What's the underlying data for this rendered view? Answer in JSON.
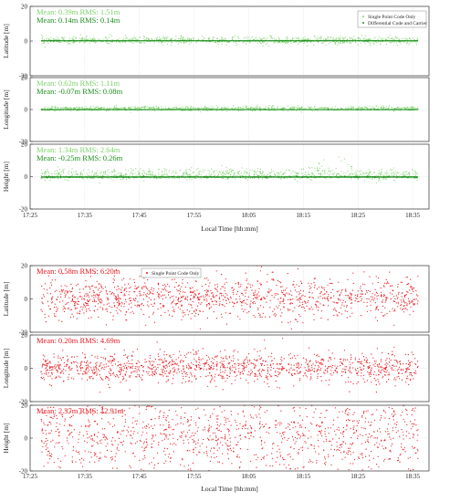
{
  "colors": {
    "green_light": "#7cd36a",
    "green_dark": "#1f8f1f",
    "red": "#e8191e",
    "axis": "#333333",
    "grid": "#d8d8d8"
  },
  "chart_data": [
    {
      "type": "scatter",
      "group": "top",
      "xlabel": "Local Time [hh:mm]",
      "xticks": [
        "17:25",
        "17:35",
        "17:45",
        "17:55",
        "18:05",
        "18:15",
        "18:25",
        "18:35"
      ],
      "xlim": [
        "17:25",
        "18:38"
      ],
      "legend": {
        "placement": "top-right",
        "entries": [
          "Single Point Code Only",
          "Differential Code and Carrier"
        ]
      },
      "panels": [
        {
          "ylabel": "Latitude [m]",
          "ylim": [
            -20,
            20
          ],
          "yticks": [
            "20",
            "0",
            "-20"
          ],
          "stats": [
            {
              "text": "Mean: 0.39m  RMS: 1.51m",
              "series": "Single Point Code Only"
            },
            {
              "text": "Mean: 0.14m  RMS: 0.14m",
              "series": "Differential Code and Carrier"
            }
          ],
          "series": [
            {
              "name": "Single Point Code Only",
              "mean": 0.39,
              "rms": 1.51
            },
            {
              "name": "Differential Code and Carrier",
              "mean": 0.14,
              "rms": 0.14
            }
          ]
        },
        {
          "ylabel": "Longitude [m]",
          "ylim": [
            -20,
            20
          ],
          "yticks": [
            "20",
            "0",
            "-20"
          ],
          "stats": [
            {
              "text": "Mean: 0.62m  RMS: 1.11m",
              "series": "Single Point Code Only"
            },
            {
              "text": "Mean: -0.07m  RMS: 0.08m",
              "series": "Differential Code and Carrier"
            }
          ],
          "series": [
            {
              "name": "Single Point Code Only",
              "mean": 0.62,
              "rms": 1.11
            },
            {
              "name": "Differential Code and Carrier",
              "mean": -0.07,
              "rms": 0.08
            }
          ]
        },
        {
          "ylabel": "Height [m]",
          "ylim": [
            -20,
            20
          ],
          "yticks": [
            "20",
            "0",
            "-20"
          ],
          "stats": [
            {
              "text": "Mean: 1.34m  RMS: 2.64m",
              "series": "Single Point Code Only"
            },
            {
              "text": "Mean: -0.25m  RMS: 0.26m",
              "series": "Differential Code and Carrier"
            }
          ],
          "series": [
            {
              "name": "Single Point Code Only",
              "mean": 1.34,
              "rms": 2.64
            },
            {
              "name": "Differential Code and Carrier",
              "mean": -0.25,
              "rms": 0.26
            }
          ]
        }
      ]
    },
    {
      "type": "scatter",
      "group": "bottom",
      "xlabel": "Local Time [hh:mm]",
      "xticks": [
        "17:25",
        "17:35",
        "17:45",
        "17:55",
        "18:05",
        "18:15",
        "18:25",
        "18:35"
      ],
      "xlim": [
        "17:25",
        "18:38"
      ],
      "legend": {
        "placement": "top-center",
        "entries": [
          "Single Point Code Only"
        ]
      },
      "panels": [
        {
          "ylabel": "Latitude [m]",
          "ylim": [
            -20,
            20
          ],
          "yticks": [
            "20",
            "0",
            "-20"
          ],
          "stats": [
            {
              "text": "Mean: 0.58m  RMS: 6.20m",
              "series": "Single Point Code Only"
            }
          ],
          "series": [
            {
              "name": "Single Point Code Only",
              "mean": 0.58,
              "rms": 6.2
            }
          ]
        },
        {
          "ylabel": "Longitude [m]",
          "ylim": [
            -20,
            20
          ],
          "yticks": [
            "20",
            "0",
            "-20"
          ],
          "stats": [
            {
              "text": "Mean: 0.20m  RMS: 4.69m",
              "series": "Single Point Code Only"
            }
          ],
          "series": [
            {
              "name": "Single Point Code Only",
              "mean": 0.2,
              "rms": 4.69
            }
          ]
        },
        {
          "ylabel": "Height [m]",
          "ylim": [
            -20,
            20
          ],
          "yticks": [
            "20",
            "0",
            "-20"
          ],
          "stats": [
            {
              "text": "Mean: 2.37m  RMS: 12.91m",
              "series": "Single Point Code Only"
            }
          ],
          "series": [
            {
              "name": "Single Point Code Only",
              "mean": 2.37,
              "rms": 12.91
            }
          ]
        }
      ]
    }
  ]
}
